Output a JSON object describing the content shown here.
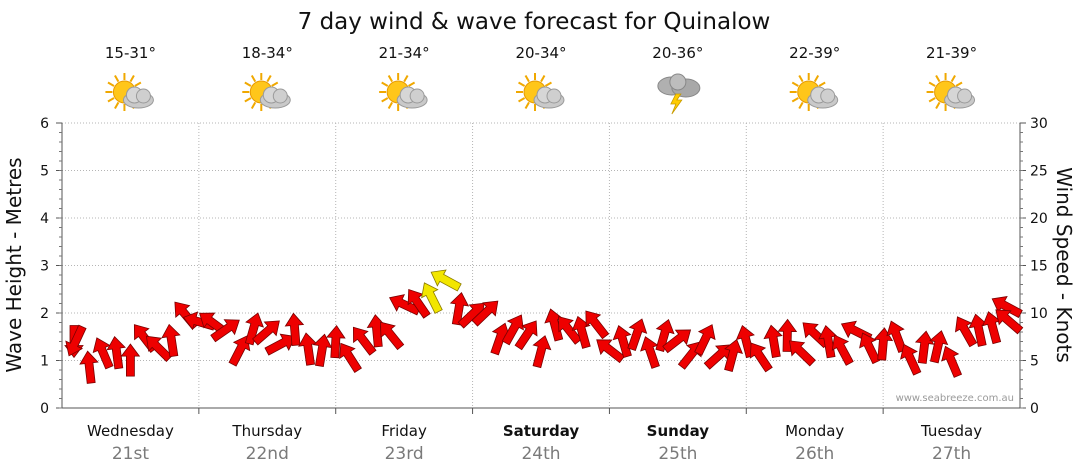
{
  "chart_data": {
    "type": "line",
    "title": "7 day wind & wave forecast for Quinalow",
    "ylabel_left": "Wave Height - Metres",
    "ylabel_right": "Wind Speed - Knots",
    "ylim_left": [
      0,
      6
    ],
    "ylim_right": [
      0,
      30
    ],
    "yticks_left": [
      "0",
      "1",
      "2",
      "3",
      "4",
      "5",
      "6"
    ],
    "yticks_right": [
      "0",
      "5",
      "10",
      "15",
      "20",
      "25",
      "30"
    ],
    "grid": true,
    "watermark": "www.seabreeze.com.au",
    "days": [
      {
        "day": "Wednesday",
        "date": "21st",
        "temp": "15-31°",
        "icon": "partly-cloudy-icon",
        "bold": false
      },
      {
        "day": "Thursday",
        "date": "22nd",
        "temp": "18-34°",
        "icon": "partly-cloudy-icon",
        "bold": false
      },
      {
        "day": "Friday",
        "date": "23rd",
        "temp": "21-34°",
        "icon": "partly-cloudy-icon",
        "bold": false
      },
      {
        "day": "Saturday",
        "date": "24th",
        "temp": "20-34°",
        "icon": "partly-cloudy-icon",
        "bold": true
      },
      {
        "day": "Sunday",
        "date": "25th",
        "temp": "20-36°",
        "icon": "thunderstorm-icon",
        "bold": true
      },
      {
        "day": "Monday",
        "date": "26th",
        "temp": "22-39°",
        "icon": "partly-cloudy-icon",
        "bold": false
      },
      {
        "day": "Tuesday",
        "date": "27th",
        "temp": "21-39°",
        "icon": "partly-cloudy-icon",
        "bold": false
      }
    ],
    "series": [
      {
        "name": "Wind speed",
        "unit": "knots",
        "x_unit": "days",
        "x": [
          0.0,
          0.25,
          0.5,
          0.75,
          1.0,
          1.25,
          1.5,
          1.75,
          2.0,
          2.25,
          2.5,
          2.75,
          3.0,
          3.25,
          3.5,
          3.75,
          4.0,
          4.25,
          4.5,
          4.75,
          5.0,
          5.25,
          5.5,
          5.75,
          6.0,
          6.25,
          6.5,
          6.75,
          7.0
        ],
        "values": [
          7,
          5,
          6,
          7,
          10,
          7,
          8,
          7,
          6,
          7,
          10,
          13,
          10,
          8,
          7,
          9,
          7,
          7,
          7,
          6,
          6,
          7,
          7,
          7,
          7,
          6,
          6,
          9,
          10
        ],
        "arrow_colors": [
          "#ee0000",
          "#ee0000",
          "#ee0000",
          "#ee0000",
          "#ee0000",
          "#ee0000",
          "#ee0000",
          "#ee0000",
          "#ee0000",
          "#ee0000",
          "#ee0000",
          "#f2e600",
          "#ee0000",
          "#ee0000",
          "#ee0000",
          "#ee0000",
          "#ee0000",
          "#ee0000",
          "#ee0000",
          "#ee0000",
          "#ee0000",
          "#ee0000",
          "#ee0000",
          "#ee0000",
          "#ee0000",
          "#ee0000",
          "#ee0000",
          "#ee0000",
          "#ee0000"
        ],
        "direction_deg": [
          90,
          270,
          250,
          240,
          220,
          300,
          310,
          280,
          260,
          240,
          230,
          220,
          300,
          310,
          280,
          230,
          240,
          270,
          300,
          320,
          260,
          250,
          240,
          230,
          250,
          270,
          260,
          240,
          230
        ]
      }
    ]
  }
}
